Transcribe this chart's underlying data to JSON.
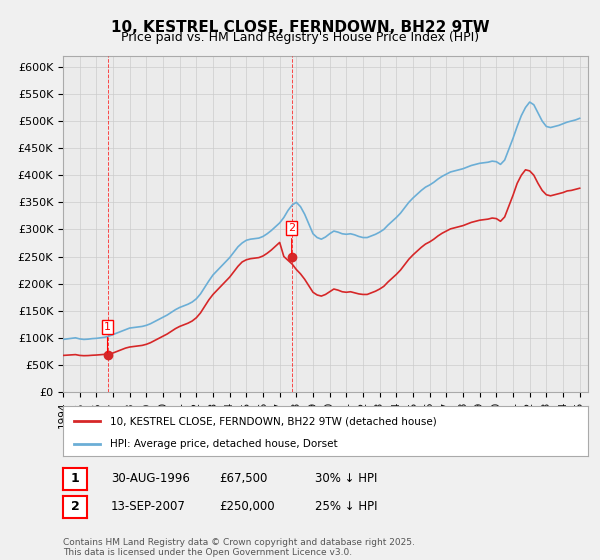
{
  "title": "10, KESTREL CLOSE, FERNDOWN, BH22 9TW",
  "subtitle": "Price paid vs. HM Land Registry's House Price Index (HPI)",
  "ylim": [
    0,
    620000
  ],
  "yticks": [
    0,
    50000,
    100000,
    150000,
    200000,
    250000,
    300000,
    350000,
    400000,
    450000,
    500000,
    550000,
    600000
  ],
  "ytick_labels": [
    "£0",
    "£50K",
    "£100K",
    "£150K",
    "£200K",
    "£250K",
    "£300K",
    "£350K",
    "£400K",
    "£450K",
    "£500K",
    "£550K",
    "£600K"
  ],
  "xlim_start": 1994.0,
  "xlim_end": 2025.5,
  "xtick_years": [
    1994,
    1995,
    1996,
    1997,
    1998,
    1999,
    2000,
    2001,
    2002,
    2003,
    2004,
    2005,
    2006,
    2007,
    2008,
    2009,
    2010,
    2011,
    2012,
    2013,
    2014,
    2015,
    2016,
    2017,
    2018,
    2019,
    2020,
    2021,
    2022,
    2023,
    2024,
    2025
  ],
  "hpi_color": "#6baed6",
  "price_color": "#d62728",
  "bg_color": "#f0f0f0",
  "plot_bg": "#ffffff",
  "grid_color": "#cccccc",
  "sale1_year": 1996.67,
  "sale1_price": 67500,
  "sale2_year": 2007.72,
  "sale2_price": 250000,
  "legend_label_red": "10, KESTREL CLOSE, FERNDOWN, BH22 9TW (detached house)",
  "legend_label_blue": "HPI: Average price, detached house, Dorset",
  "annotation1_label": "1",
  "annotation2_label": "2",
  "table_row1": [
    "1",
    "30-AUG-1996",
    "£67,500",
    "30% ↓ HPI"
  ],
  "table_row2": [
    "2",
    "13-SEP-2007",
    "£250,000",
    "25% ↓ HPI"
  ],
  "footer": "Contains HM Land Registry data © Crown copyright and database right 2025.\nThis data is licensed under the Open Government Licence v3.0.",
  "hpi_data": {
    "years": [
      1994.0,
      1994.25,
      1994.5,
      1994.75,
      1995.0,
      1995.25,
      1995.5,
      1995.75,
      1996.0,
      1996.25,
      1996.5,
      1996.75,
      1997.0,
      1997.25,
      1997.5,
      1997.75,
      1998.0,
      1998.25,
      1998.5,
      1998.75,
      1999.0,
      1999.25,
      1999.5,
      1999.75,
      2000.0,
      2000.25,
      2000.5,
      2000.75,
      2001.0,
      2001.25,
      2001.5,
      2001.75,
      2002.0,
      2002.25,
      2002.5,
      2002.75,
      2003.0,
      2003.25,
      2003.5,
      2003.75,
      2004.0,
      2004.25,
      2004.5,
      2004.75,
      2005.0,
      2005.25,
      2005.5,
      2005.75,
      2006.0,
      2006.25,
      2006.5,
      2006.75,
      2007.0,
      2007.25,
      2007.5,
      2007.75,
      2008.0,
      2008.25,
      2008.5,
      2008.75,
      2009.0,
      2009.25,
      2009.5,
      2009.75,
      2010.0,
      2010.25,
      2010.5,
      2010.75,
      2011.0,
      2011.25,
      2011.5,
      2011.75,
      2012.0,
      2012.25,
      2012.5,
      2012.75,
      2013.0,
      2013.25,
      2013.5,
      2013.75,
      2014.0,
      2014.25,
      2014.5,
      2014.75,
      2015.0,
      2015.25,
      2015.5,
      2015.75,
      2016.0,
      2016.25,
      2016.5,
      2016.75,
      2017.0,
      2017.25,
      2017.5,
      2017.75,
      2018.0,
      2018.25,
      2018.5,
      2018.75,
      2019.0,
      2019.25,
      2019.5,
      2019.75,
      2020.0,
      2020.25,
      2020.5,
      2020.75,
      2021.0,
      2021.25,
      2021.5,
      2021.75,
      2022.0,
      2022.25,
      2022.5,
      2022.75,
      2023.0,
      2023.25,
      2023.5,
      2023.75,
      2024.0,
      2024.25,
      2024.5,
      2024.75,
      2025.0
    ],
    "values": [
      97000,
      98000,
      99000,
      100000,
      98000,
      97000,
      97500,
      98500,
      99000,
      100000,
      101000,
      103000,
      106000,
      109000,
      112000,
      115000,
      118000,
      119000,
      120000,
      121000,
      123000,
      126000,
      130000,
      134000,
      138000,
      142000,
      147000,
      152000,
      156000,
      159000,
      162000,
      166000,
      172000,
      181000,
      193000,
      205000,
      216000,
      224000,
      232000,
      240000,
      248000,
      258000,
      268000,
      275000,
      280000,
      282000,
      283000,
      284000,
      287000,
      292000,
      298000,
      305000,
      312000,
      322000,
      335000,
      345000,
      350000,
      342000,
      328000,
      310000,
      292000,
      285000,
      282000,
      286000,
      292000,
      297000,
      295000,
      292000,
      291000,
      292000,
      290000,
      287000,
      285000,
      285000,
      288000,
      291000,
      295000,
      300000,
      308000,
      315000,
      322000,
      330000,
      340000,
      350000,
      358000,
      365000,
      372000,
      378000,
      382000,
      387000,
      393000,
      398000,
      402000,
      406000,
      408000,
      410000,
      412000,
      415000,
      418000,
      420000,
      422000,
      423000,
      424000,
      426000,
      425000,
      420000,
      428000,
      448000,
      468000,
      490000,
      510000,
      525000,
      535000,
      530000,
      515000,
      500000,
      490000,
      488000,
      490000,
      492000,
      495000,
      498000,
      500000,
      502000,
      505000
    ]
  },
  "red_data": {
    "years": [
      1994.0,
      1994.25,
      1994.5,
      1994.75,
      1995.0,
      1995.25,
      1995.5,
      1995.75,
      1996.0,
      1996.25,
      1996.5,
      1996.75,
      1997.0,
      1997.25,
      1997.5,
      1997.75,
      1998.0,
      1998.25,
      1998.5,
      1998.75,
      1999.0,
      1999.25,
      1999.5,
      1999.75,
      2000.0,
      2000.25,
      2000.5,
      2000.75,
      2001.0,
      2001.25,
      2001.5,
      2001.75,
      2002.0,
      2002.25,
      2002.5,
      2002.75,
      2003.0,
      2003.25,
      2003.5,
      2003.75,
      2004.0,
      2004.25,
      2004.5,
      2004.75,
      2005.0,
      2005.25,
      2005.5,
      2005.75,
      2006.0,
      2006.25,
      2006.5,
      2006.75,
      2007.0,
      2007.25,
      2007.5,
      2007.75,
      2008.0,
      2008.25,
      2008.5,
      2008.75,
      2009.0,
      2009.25,
      2009.5,
      2009.75,
      2010.0,
      2010.25,
      2010.5,
      2010.75,
      2011.0,
      2011.25,
      2011.5,
      2011.75,
      2012.0,
      2012.25,
      2012.5,
      2012.75,
      2013.0,
      2013.25,
      2013.5,
      2013.75,
      2014.0,
      2014.25,
      2014.5,
      2014.75,
      2015.0,
      2015.25,
      2015.5,
      2015.75,
      2016.0,
      2016.25,
      2016.5,
      2016.75,
      2017.0,
      2017.25,
      2017.5,
      2017.75,
      2018.0,
      2018.25,
      2018.5,
      2018.75,
      2019.0,
      2019.25,
      2019.5,
      2019.75,
      2020.0,
      2020.25,
      2020.5,
      2020.75,
      2021.0,
      2021.25,
      2021.5,
      2021.75,
      2022.0,
      2022.25,
      2022.5,
      2022.75,
      2023.0,
      2023.25,
      2023.5,
      2023.75,
      2024.0,
      2024.25,
      2024.5,
      2024.75,
      2025.0
    ],
    "values": [
      67500,
      68000,
      68500,
      69000,
      67500,
      67000,
      67200,
      67800,
      68200,
      68800,
      69500,
      70000,
      72000,
      75000,
      78000,
      81000,
      83000,
      84000,
      85000,
      86000,
      88000,
      91000,
      95000,
      99000,
      103000,
      107000,
      112000,
      117000,
      121000,
      124000,
      127000,
      131000,
      137000,
      146000,
      158000,
      170000,
      180000,
      188000,
      196000,
      204000,
      212000,
      222000,
      232000,
      240000,
      244000,
      246000,
      247000,
      248000,
      251000,
      256000,
      262000,
      269000,
      276000,
      250000,
      243000,
      236000,
      226000,
      218000,
      208000,
      196000,
      184000,
      179000,
      177000,
      180000,
      185000,
      190000,
      188000,
      185000,
      184000,
      185000,
      183000,
      181000,
      180000,
      180000,
      183000,
      186000,
      190000,
      195000,
      203000,
      210000,
      217000,
      225000,
      235000,
      245000,
      253000,
      260000,
      267000,
      273000,
      277000,
      282000,
      288000,
      293000,
      297000,
      301000,
      303000,
      305000,
      307000,
      310000,
      313000,
      315000,
      317000,
      318000,
      319000,
      321000,
      320000,
      315000,
      323000,
      343000,
      363000,
      385000,
      400000,
      410000,
      408000,
      400000,
      385000,
      372000,
      364000,
      362000,
      364000,
      366000,
      368000,
      371000,
      372000,
      374000,
      376000
    ]
  }
}
